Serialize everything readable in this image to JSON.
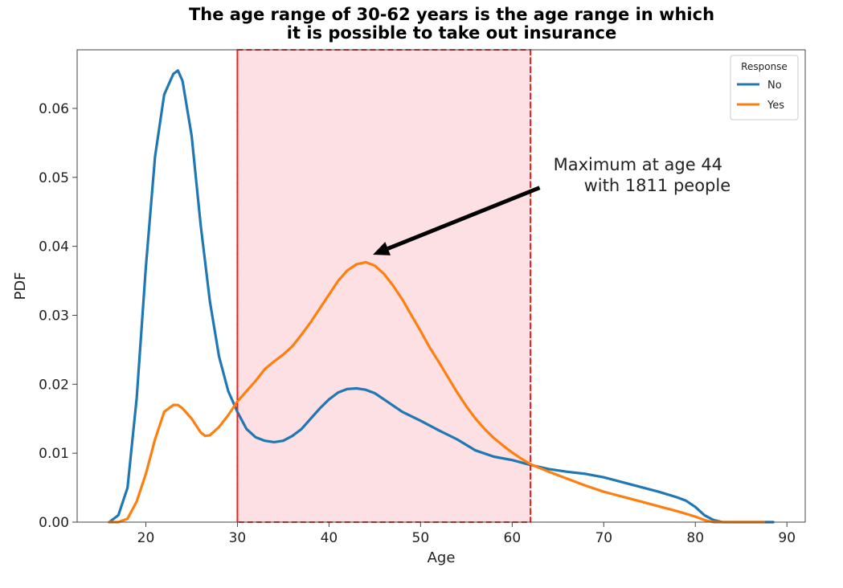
{
  "chart_data": {
    "type": "line",
    "title_lines": [
      "The age range of 30-62 years is the age range in which",
      "it is possible to take out insurance"
    ],
    "xlabel": "Age",
    "ylabel": "PDF",
    "xlim": [
      12.5,
      92
    ],
    "ylim": [
      0,
      0.0685
    ],
    "xticks": [
      20,
      30,
      40,
      50,
      60,
      70,
      80,
      90
    ],
    "xtick_labels": [
      "20",
      "30",
      "40",
      "50",
      "60",
      "70",
      "80",
      "90"
    ],
    "yticks": [
      0,
      0.01,
      0.02,
      0.03,
      0.04,
      0.05,
      0.06
    ],
    "ytick_labels": [
      "0.00",
      "0.01",
      "0.02",
      "0.03",
      "0.04",
      "0.05",
      "0.06"
    ],
    "grid": false,
    "shaded_span": {
      "x0": 30,
      "x1": 62,
      "color": "#fde0e4",
      "border_color": "#ee2222"
    },
    "annotation": {
      "lines": [
        "Maximum at age 44",
        "with 1811 people"
      ],
      "text_at": [
        64.5,
        0.051
      ],
      "arrow_from": [
        63,
        0.0485
      ],
      "arrow_to": [
        44.8,
        0.0388
      ]
    },
    "legend": {
      "title": "Response",
      "position": "top-right"
    },
    "series": [
      {
        "name": "No",
        "color": "#1f77b4",
        "points": [
          [
            16,
            0
          ],
          [
            17,
            0.001
          ],
          [
            18,
            0.005
          ],
          [
            19,
            0.018
          ],
          [
            20,
            0.037
          ],
          [
            21,
            0.053
          ],
          [
            22,
            0.062
          ],
          [
            23,
            0.065
          ],
          [
            23.5,
            0.0655
          ],
          [
            24,
            0.064
          ],
          [
            25,
            0.056
          ],
          [
            26,
            0.043
          ],
          [
            27,
            0.032
          ],
          [
            28,
            0.024
          ],
          [
            29,
            0.019
          ],
          [
            30,
            0.016
          ],
          [
            31,
            0.0135
          ],
          [
            32,
            0.0123
          ],
          [
            33,
            0.0118
          ],
          [
            34,
            0.0116
          ],
          [
            35,
            0.0118
          ],
          [
            36,
            0.0125
          ],
          [
            37,
            0.0135
          ],
          [
            38,
            0.015
          ],
          [
            39,
            0.0165
          ],
          [
            40,
            0.0178
          ],
          [
            41,
            0.0188
          ],
          [
            42,
            0.0193
          ],
          [
            43,
            0.0194
          ],
          [
            44,
            0.0192
          ],
          [
            45,
            0.0187
          ],
          [
            46,
            0.0178
          ],
          [
            48,
            0.016
          ],
          [
            50,
            0.0147
          ],
          [
            52,
            0.0133
          ],
          [
            54,
            0.012
          ],
          [
            56,
            0.0104
          ],
          [
            58,
            0.0095
          ],
          [
            60,
            0.009
          ],
          [
            62,
            0.0083
          ],
          [
            64,
            0.0077
          ],
          [
            66,
            0.0073
          ],
          [
            68,
            0.007
          ],
          [
            70,
            0.0065
          ],
          [
            72,
            0.0058
          ],
          [
            74,
            0.0051
          ],
          [
            76,
            0.0044
          ],
          [
            78,
            0.0036
          ],
          [
            79,
            0.0031
          ],
          [
            80,
            0.0022
          ],
          [
            81,
            0.001
          ],
          [
            82,
            0.0003
          ],
          [
            83,
            0
          ],
          [
            88.5,
            0
          ]
        ]
      },
      {
        "name": "Yes",
        "color": "#ff7f0e",
        "points": [
          [
            16,
            0
          ],
          [
            17,
            0
          ],
          [
            18,
            0.0005
          ],
          [
            19,
            0.003
          ],
          [
            20,
            0.007
          ],
          [
            21,
            0.012
          ],
          [
            22,
            0.016
          ],
          [
            23,
            0.017
          ],
          [
            23.5,
            0.017
          ],
          [
            24,
            0.0165
          ],
          [
            25,
            0.015
          ],
          [
            26,
            0.013
          ],
          [
            26.5,
            0.0125
          ],
          [
            27,
            0.0126
          ],
          [
            28,
            0.0138
          ],
          [
            29,
            0.0155
          ],
          [
            30,
            0.0175
          ],
          [
            31,
            0.019
          ],
          [
            32,
            0.0205
          ],
          [
            33,
            0.0222
          ],
          [
            34,
            0.0233
          ],
          [
            35,
            0.0243
          ],
          [
            36,
            0.0255
          ],
          [
            37,
            0.0272
          ],
          [
            38,
            0.029
          ],
          [
            39,
            0.031
          ],
          [
            40,
            0.033
          ],
          [
            41,
            0.035
          ],
          [
            42,
            0.0365
          ],
          [
            43,
            0.0374
          ],
          [
            44,
            0.0377
          ],
          [
            45,
            0.0372
          ],
          [
            46,
            0.036
          ],
          [
            47,
            0.0343
          ],
          [
            48,
            0.0323
          ],
          [
            49,
            0.03
          ],
          [
            50,
            0.0277
          ],
          [
            51,
            0.0253
          ],
          [
            52,
            0.0232
          ],
          [
            53,
            0.021
          ],
          [
            54,
            0.0188
          ],
          [
            55,
            0.0168
          ],
          [
            56,
            0.015
          ],
          [
            57,
            0.0135
          ],
          [
            58,
            0.0122
          ],
          [
            59,
            0.0111
          ],
          [
            60,
            0.0101
          ],
          [
            61,
            0.0092
          ],
          [
            62,
            0.0084
          ],
          [
            64,
            0.0073
          ],
          [
            66,
            0.0063
          ],
          [
            68,
            0.0053
          ],
          [
            70,
            0.0044
          ],
          [
            72,
            0.0037
          ],
          [
            74,
            0.003
          ],
          [
            76,
            0.0023
          ],
          [
            78,
            0.0016
          ],
          [
            80,
            0.0008
          ],
          [
            81,
            0.0003
          ],
          [
            82,
            0
          ],
          [
            87.5,
            0
          ]
        ]
      }
    ]
  }
}
